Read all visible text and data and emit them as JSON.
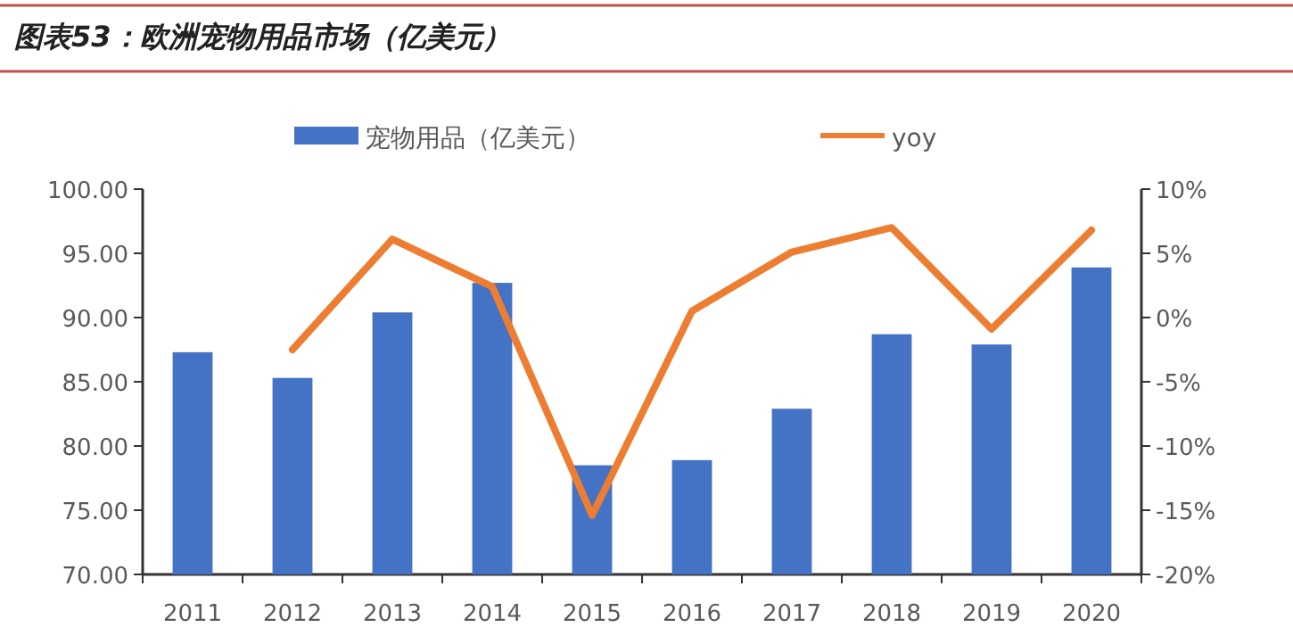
{
  "chart_data": {
    "type": "bar",
    "title": "图表53：欧洲宠物用品市场（亿美元）",
    "categories": [
      "2011",
      "2012",
      "2013",
      "2014",
      "2015",
      "2016",
      "2017",
      "2018",
      "2019",
      "2020"
    ],
    "series": [
      {
        "name": "宠物用品（亿美元）",
        "color": "#4472c4",
        "values": [
          87.3,
          85.3,
          90.4,
          92.7,
          78.5,
          78.9,
          82.9,
          88.7,
          87.9,
          93.9
        ]
      },
      {
        "name": "yoy",
        "type": "line",
        "axis": "y2",
        "color": "#ed7d31",
        "values": [
          null,
          -2.5,
          6.1,
          2.4,
          -15.4,
          0.5,
          5.1,
          7.0,
          -0.9,
          6.8
        ]
      }
    ],
    "ylim": [
      70,
      100
    ],
    "yticks": [
      {
        "value": 70,
        "label": "70.00"
      },
      {
        "value": 75,
        "label": "75.00"
      },
      {
        "value": 80,
        "label": "80.00"
      },
      {
        "value": 85,
        "label": "85.00"
      },
      {
        "value": 90,
        "label": "90.00"
      },
      {
        "value": 95,
        "label": "95.00"
      },
      {
        "value": 100,
        "label": "100.00"
      }
    ],
    "y2lim": [
      -20,
      10
    ],
    "y2ticks": [
      {
        "value": -20,
        "label": "-20%"
      },
      {
        "value": -15,
        "label": "-15%"
      },
      {
        "value": -10,
        "label": "-10%"
      },
      {
        "value": -5,
        "label": "-5%"
      },
      {
        "value": 0,
        "label": "0%"
      },
      {
        "value": 5,
        "label": "5%"
      },
      {
        "value": 10,
        "label": "10%"
      }
    ],
    "legend": "top",
    "grid": false,
    "marker": "none"
  }
}
